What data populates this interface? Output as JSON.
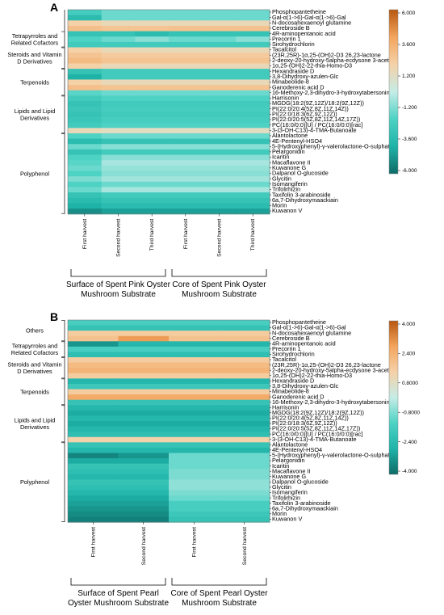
{
  "scale": {
    "colors": [
      "#0e6b67",
      "#1fb3a8",
      "#4dd2c4",
      "#c5ece6",
      "#f5d1a8",
      "#f3a55e",
      "#b8570f"
    ]
  },
  "chart_data": [
    {
      "type": "heatmap",
      "panel": "A",
      "rows": [
        "Phosphopantetheine",
        "Gal-α(1->6)-Gal-α(1->6)-Gal",
        "N-docosahexaenoyl glutamine",
        "Cerebroside B",
        "4R-aminopentanoic acid",
        "Precorrin 1",
        "Sirohydrochlorin",
        "Tacalcitol",
        "(23R,25R)-1α,25-(OH)2-D3 26,23-lactone",
        "2-deoxy-20-hydroxy-5alpha-ecdysone 3-acetate",
        "1α,25-(OH)2-22-thia-Homo-D3",
        "Hexandraside D",
        "3,8-Dihydroxy-azulen-Glc",
        "Minabeolide-8",
        "Ganoderenic acid D",
        "16-Methoxy-2,3-dihydro-3-hydroxytabersonine",
        "Harrisonin",
        "MGDG(18:2(9Z,12Z)/18:2(9Z,12Z))",
        "PI(22:0/20:4(5Z,8Z,11Z,14Z))",
        "PI(22:0/18:3(6Z,9Z,12Z))",
        "PI(22:0/20:5(5Z,8Z,11Z,14Z,17Z))",
        "PC(16:0/0:0)[U] / PC(16:0/0:0)[rac]",
        "3-(3-OH-C13)-4-TMA-Butanoate",
        "Alantolactone",
        "4E-Pentenyl-HSO4",
        "5-(Hydroxyphenyl)-γ-valerolactone-O-sulphate",
        "Pelargonidin",
        "Icaritin",
        "Macaflavone II",
        "Kuwanone G",
        "Dalpanol O-glucoside",
        "Glycitin",
        "Isomangiferin",
        "Trifolirhizin",
        "Taxifolin 3-arabinoside",
        "6a,7-Dihydroxymaackiain",
        "Morin",
        "Kuwanon V"
      ],
      "columns": [
        "First harvest",
        "Second harvest",
        "Third harvest",
        "First harvest",
        "Second harvest",
        "Third harvest"
      ],
      "column_groups": [
        {
          "label": "Surface of Spent Pink Oyster Mushroom Substrate",
          "span": [
            0,
            2
          ]
        },
        {
          "label": "Core of Spent Pink Oyster Mushroom Substrate",
          "span": [
            3,
            5
          ]
        }
      ],
      "row_groups": [
        {
          "label": "Tetrapyrroles and Related Cofactors",
          "rows": [
            4,
            6
          ]
        },
        {
          "label": "Steroids and Vitamin D Derivatives",
          "rows": [
            7,
            10
          ]
        },
        {
          "label": "Terpenoids",
          "rows": [
            11,
            15
          ]
        },
        {
          "label": "Lipids and Lipid Derivatives",
          "rows": [
            16,
            22
          ]
        },
        {
          "label": "Polyphenol",
          "rows": [
            23,
            37
          ]
        }
      ],
      "colorbar": {
        "min": -6,
        "max": 6,
        "ticks": [
          "6.000",
          "3.600",
          "1.200",
          "-1.200",
          "-3.600",
          "-6.000"
        ]
      },
      "values": [
        [
          -2.4,
          -1.5,
          -1.5,
          -1.5,
          -1.5,
          -1.5
        ],
        [
          -3.5,
          -1.5,
          -1.5,
          -1.5,
          -1.5,
          -1.5
        ],
        [
          2,
          1.5,
          1.5,
          1.5,
          1.5,
          1.5
        ],
        [
          2.8,
          2.6,
          2.6,
          2.7,
          2.7,
          2.7
        ],
        [
          -3,
          -3,
          -3.5,
          -3,
          -3,
          -3
        ],
        [
          -2,
          -1.5,
          -1,
          -1.5,
          -1.5,
          -1
        ],
        [
          -2.5,
          -2.5,
          -2.5,
          -2.5,
          -2.5,
          -2.5
        ],
        [
          2,
          1.5,
          1.5,
          1.5,
          1.5,
          1.5
        ],
        [
          2.6,
          2.3,
          2.3,
          2.3,
          2.3,
          2.3
        ],
        [
          3,
          2.6,
          2.6,
          2.6,
          2.6,
          2.6
        ],
        [
          2,
          1.5,
          1.5,
          1.5,
          1.5,
          1.5
        ],
        [
          -3,
          -2.5,
          -2.5,
          -2.5,
          -2.5,
          -2.5
        ],
        [
          -4,
          -2.5,
          -2.5,
          -2.5,
          -2.5,
          -2.5
        ],
        [
          2,
          1.5,
          1.5,
          1.5,
          1.5,
          1.5
        ],
        [
          2.8,
          2.6,
          2.6,
          2.6,
          2.6,
          2.6
        ],
        [
          -1.8,
          -1.5,
          -1.5,
          -1.5,
          -1.5,
          -1.5
        ],
        [
          -2.5,
          -2,
          -2,
          -2,
          -2,
          -2
        ],
        [
          -3,
          -2.5,
          -2.5,
          -2.5,
          -2.5,
          -2.5
        ],
        [
          -2.8,
          -2.3,
          -2.3,
          -2.3,
          -2.3,
          -2.3
        ],
        [
          -3,
          -2.5,
          -2.5,
          -2.5,
          -2.5,
          -2.5
        ],
        [
          -2.8,
          -2.3,
          -2.3,
          -2.3,
          -2.3,
          -2.3
        ],
        [
          -2.5,
          -2,
          -2,
          -2,
          -2,
          -2
        ],
        [
          1.5,
          1.2,
          1.2,
          1.2,
          1.2,
          1.2
        ],
        [
          -2,
          -1.5,
          -1.5,
          -1.5,
          -1.5,
          -1.5
        ],
        [
          -3.5,
          -3,
          -3,
          -3,
          -3,
          -3
        ],
        [
          -1.5,
          -1,
          -1,
          -1,
          -1,
          -1
        ],
        [
          -3,
          -2.5,
          -2.5,
          -2.5,
          -2.5,
          -2.5
        ],
        [
          -2,
          -1,
          -1,
          -1,
          -1,
          -1
        ],
        [
          -1.8,
          -0.5,
          -0.5,
          -0.5,
          -0.5,
          -0.5
        ],
        [
          -1.5,
          -0.8,
          -0.8,
          -0.8,
          -0.8,
          -0.8
        ],
        [
          -2,
          -1,
          -1,
          -1,
          -1,
          -1
        ],
        [
          -1.2,
          -0.6,
          -0.6,
          -0.6,
          -0.6,
          -0.6
        ],
        [
          -2,
          -1.5,
          -1.5,
          -1.5,
          -1.5,
          -1.5
        ],
        [
          -1.5,
          -0.5,
          -0.5,
          -0.5,
          -0.5,
          -0.5
        ],
        [
          -3,
          -2.5,
          -2.5,
          -2.5,
          -2.5,
          -2.5
        ],
        [
          -3.5,
          -3,
          -3,
          -3,
          -3,
          -3
        ],
        [
          -4,
          -3.5,
          -3.5,
          -3.5,
          -3.5,
          -3.5
        ],
        [
          -5,
          -4.5,
          -4.5,
          -4.5,
          -4.5,
          -4.5
        ]
      ]
    },
    {
      "type": "heatmap",
      "panel": "B",
      "rows": [
        "Phosphopantetheine",
        "Gal-α(1->6)-Gal-α(1->6)-Gal",
        "N-docosahexaenoyl glutamine",
        "Cerebroside B",
        "4R-aminopentanoic acid",
        "Precorrin 1",
        "Sirohydrochlorin",
        "Tacalcitol",
        "(23R,25R)-1α,25-(OH)2-D3 26,23-lactone",
        "2-deoxy-20-hydroxy-5alpha-ecdysone 3-acetate",
        "1α,25-(OH)2-22-thia-Homo-D3",
        "Hexandraside D",
        "3,8-Dihydroxy-azulen-Glc",
        "Minabeolide-8",
        "Ganoderenic acid D",
        "16-Methoxy-2,3-dihydro-3-hydroxytabersonine",
        "Harrisonin",
        "MGDG(18:2(9Z,12Z)/18:2(9Z,12Z))",
        "PI(22:0/20:4(5Z,8Z,11Z,14Z))",
        "PI(22:0/18:3(6Z,9Z,12Z))",
        "PI(22:0/20:5(5Z,8Z,11Z,14Z,17Z))",
        "PC(16:0/0:0)[U] / PC(16:0/0:0)[rac]",
        "3-(3-OH-C13)-4-TMA-Butanoate",
        "Alantolactone",
        "4E-Pentenyl-HSO4",
        "5-(Hydroxyphenyl)-γ-valerolactone-O-sulphate",
        "Pelargonidin",
        "Icaritin",
        "Macaflavone II",
        "Kuwanone G",
        "Dalpanol O-glucoside",
        "Glycitin",
        "Isomangiferin",
        "Trifolirhizin",
        "Taxifolin 3-arabinoside",
        "6a,7-Dihydroxymaackiain",
        "Morin",
        "Kuwanon V"
      ],
      "columns": [
        "First harvest",
        "Second harvest",
        "First harvest",
        "Second harvest"
      ],
      "column_groups": [
        {
          "label": "Surface of Spent Pearl Oyster Mushroom Substrate",
          "span": [
            0,
            1
          ]
        },
        {
          "label": "Core of Spent Pearl Oyster Mushroom Substrate",
          "span": [
            2,
            3
          ]
        }
      ],
      "row_groups": [
        {
          "label": "Others",
          "rows": [
            0,
            3
          ]
        },
        {
          "label": "Tetrapyrroles and Related Cofactors",
          "rows": [
            4,
            6
          ]
        },
        {
          "label": "Steroids and Vitamin D Derivatives",
          "rows": [
            7,
            10
          ]
        },
        {
          "label": "Terpenoids",
          "rows": [
            11,
            15
          ]
        },
        {
          "label": "Lipids and Lipid Derivatives",
          "rows": [
            16,
            22
          ]
        },
        {
          "label": "Polyphenol",
          "rows": [
            23,
            37
          ]
        }
      ],
      "colorbar": {
        "min": -4,
        "max": 4,
        "ticks": [
          "4.000",
          "2.400",
          "0.8000",
          "-0.8000",
          "-2.400",
          "-4.000"
        ]
      },
      "values": [
        [
          -1.5,
          -1.5,
          -1.5,
          -1.5
        ],
        [
          -2,
          -2,
          -2,
          -2
        ],
        [
          1.5,
          1.5,
          1.5,
          1.5
        ],
        [
          1.8,
          2.8,
          1.8,
          1.8
        ],
        [
          -3.2,
          -2.5,
          -2.5,
          -2.5
        ],
        [
          -1.5,
          -1.5,
          -1.5,
          -1.5
        ],
        [
          -2.2,
          -2.2,
          -2.2,
          -2.2
        ],
        [
          1.5,
          1.5,
          1.5,
          1.5
        ],
        [
          2,
          2,
          2,
          2
        ],
        [
          2.2,
          2.2,
          2.2,
          2.2
        ],
        [
          1.5,
          1.5,
          1.5,
          1.5
        ],
        [
          -2.5,
          -2.5,
          -2.5,
          -2.5
        ],
        [
          -1.8,
          -1.8,
          -1.8,
          -1.8
        ],
        [
          1.5,
          1.5,
          1.5,
          1.5
        ],
        [
          2.5,
          2.5,
          2.5,
          2.5
        ],
        [
          -2,
          -2,
          -2,
          -2
        ],
        [
          -2.5,
          -2.5,
          -2.5,
          -2.5
        ],
        [
          -2.8,
          -2.8,
          -2.8,
          -2.8
        ],
        [
          -2.5,
          -2.5,
          -2.5,
          -2.5
        ],
        [
          -2.8,
          -2.8,
          -2.8,
          -2.8
        ],
        [
          -2.5,
          -2.5,
          -2.5,
          -2.5
        ],
        [
          -2.2,
          -2.2,
          -2.2,
          -2.2
        ],
        [
          1.3,
          1.3,
          1.3,
          1.3
        ],
        [
          -2,
          -2,
          -2,
          -2
        ],
        [
          -2.5,
          -2.5,
          -2.5,
          -2.5
        ],
        [
          -3.5,
          -3.2,
          -1,
          -1
        ],
        [
          -2.8,
          -2.8,
          -1,
          -1
        ],
        [
          -2,
          -2,
          -1,
          -1
        ],
        [
          -2.2,
          -2.2,
          -0.8,
          -0.8
        ],
        [
          -2.5,
          -2.5,
          -0.8,
          -0.8
        ],
        [
          -2,
          -2,
          -0.6,
          -0.6
        ],
        [
          -2.2,
          -2.2,
          -0.6,
          -0.6
        ],
        [
          -2.5,
          -2.5,
          -0.8,
          -0.8
        ],
        [
          -2.8,
          -2.8,
          -1,
          -1
        ],
        [
          -3,
          -3,
          -1.5,
          -1.5
        ],
        [
          -3.2,
          -3.2,
          -1.5,
          -1.5
        ],
        [
          -3.4,
          -3.4,
          -1.8,
          -1.8
        ],
        [
          -3.6,
          -3.6,
          -2,
          -2
        ]
      ]
    }
  ]
}
